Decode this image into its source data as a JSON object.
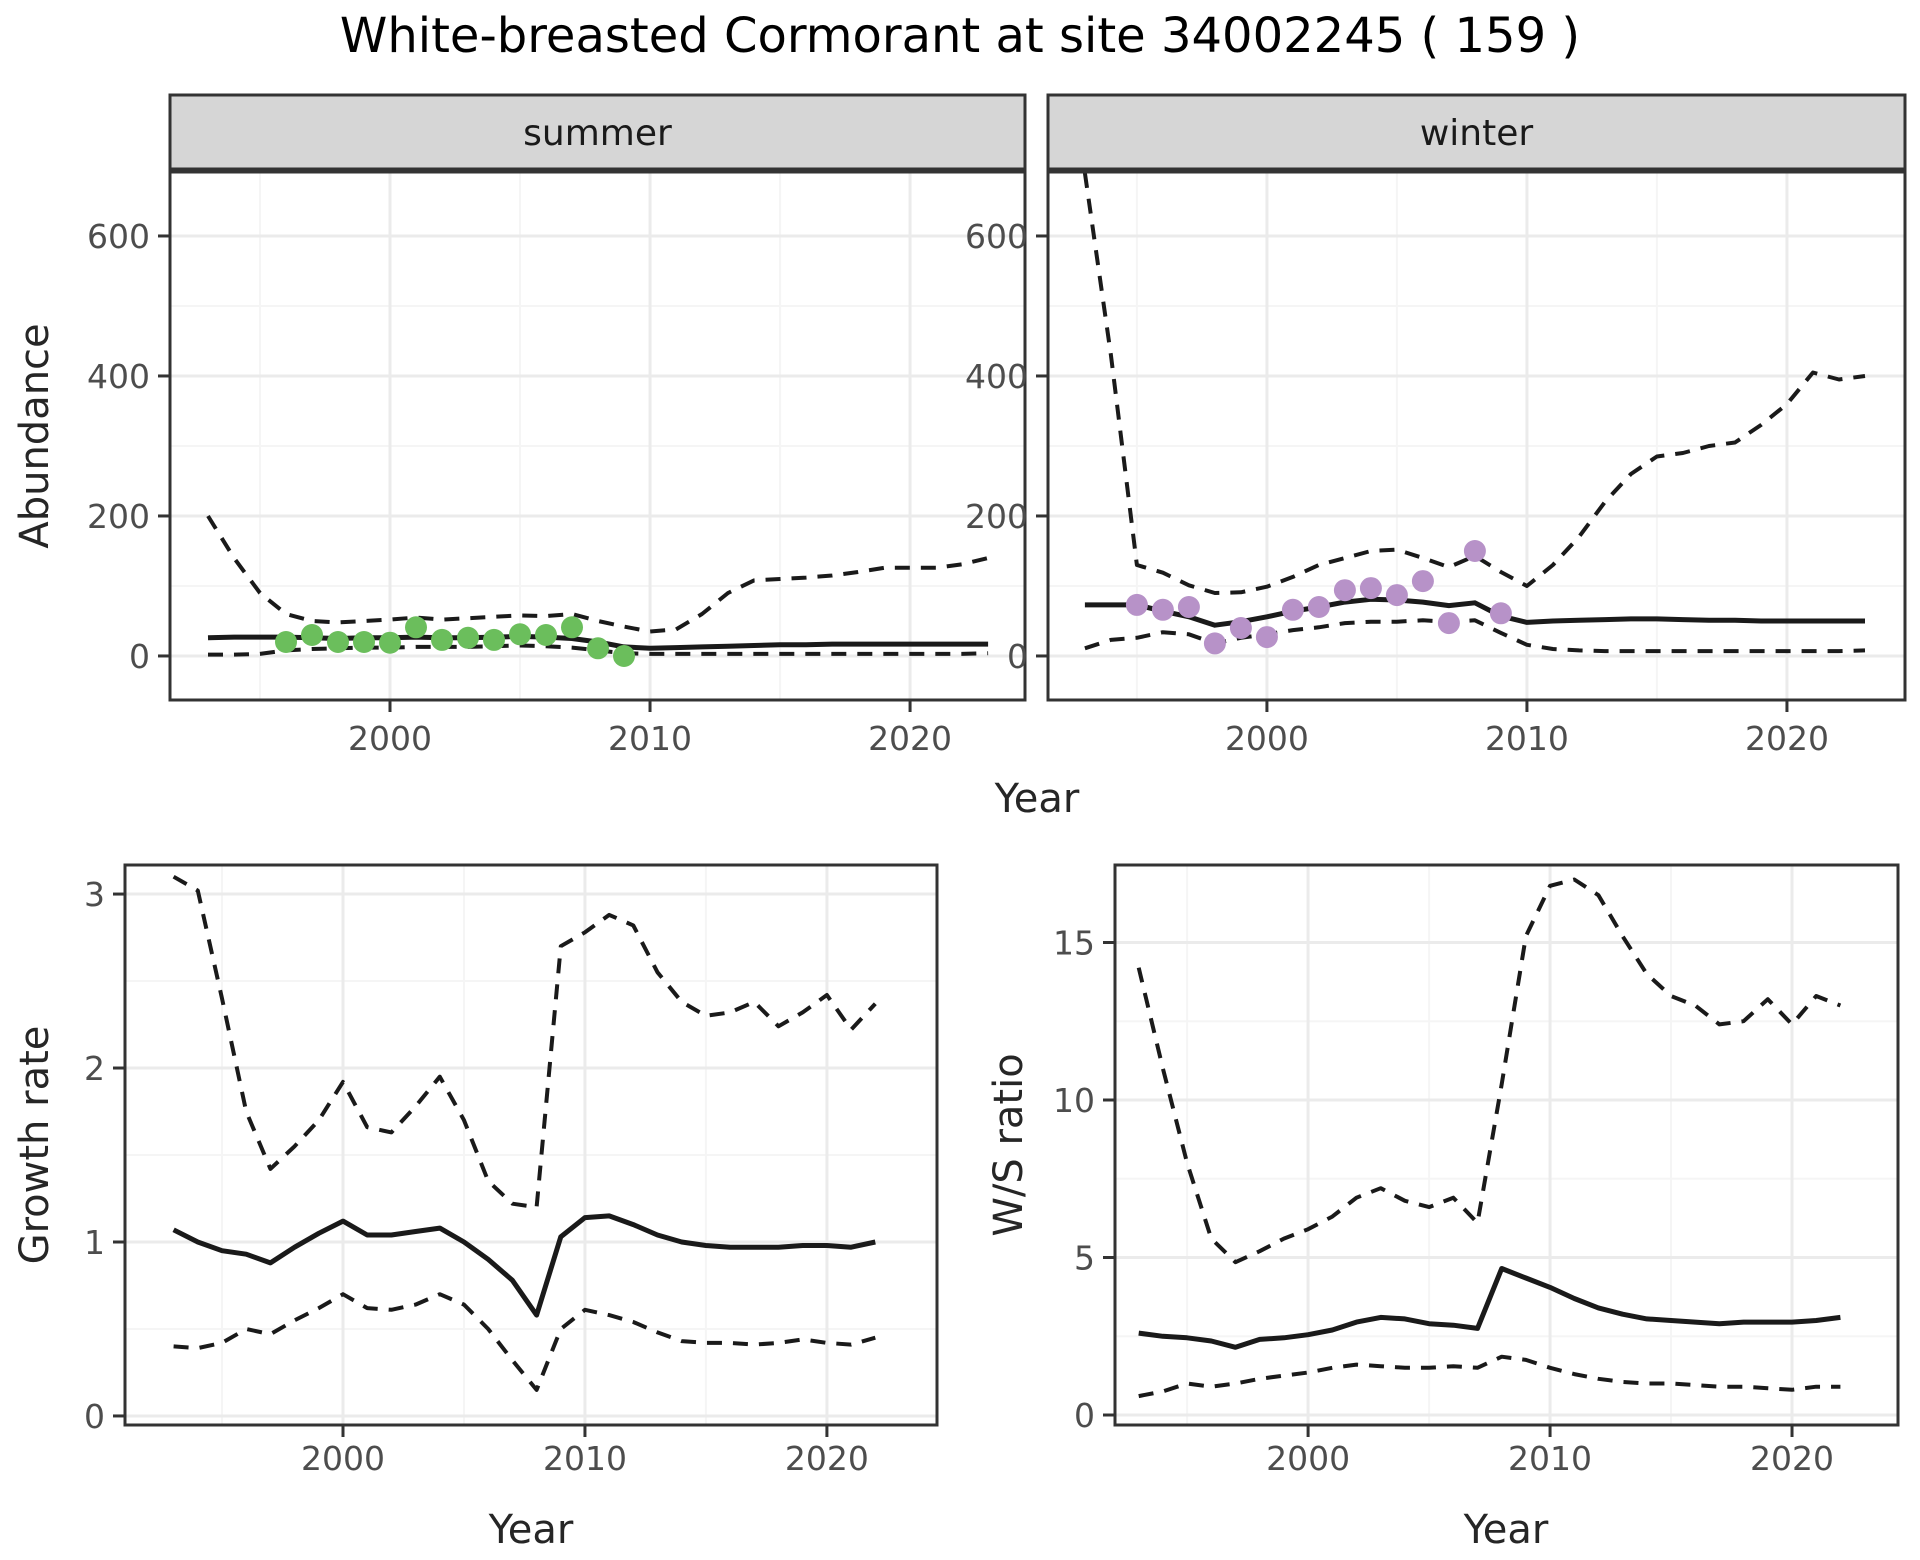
{
  "title": "White-breasted Cormorant at site 34002245 ( 159 )",
  "colors": {
    "background": "#ffffff",
    "line": "#1a1a1a",
    "grid_major": "#ebebeb",
    "grid_minor": "#f5f5f5",
    "panel_border": "#333333",
    "strip_background": "#d6d6d6",
    "tick_text": "#4d4d4d",
    "summer_points": "#6bbe5c",
    "winter_points": "#b792c8"
  },
  "chart_data": [
    {
      "id": "abundance-summer",
      "type": "line",
      "facet": "summer",
      "ylabel": "Abundance",
      "xlabel": "Year",
      "grid": true,
      "legend": "none",
      "xlim": [
        1991.54,
        2024.42
      ],
      "ylim": [
        -62.9,
        691.4
      ],
      "xticks": [
        2000,
        2010,
        2020
      ],
      "xminor": [
        1995,
        2005,
        2015
      ],
      "yticks": [
        0,
        200,
        400,
        600
      ],
      "yminor": [
        100,
        300,
        500
      ],
      "x": [
        1993,
        1994,
        1995,
        1996,
        1997,
        1998,
        1999,
        2000,
        2001,
        2002,
        2003,
        2004,
        2005,
        2006,
        2007,
        2008,
        2009,
        2010,
        2011,
        2012,
        2013,
        2014,
        2015,
        2016,
        2017,
        2018,
        2019,
        2020,
        2021,
        2022,
        2023
      ],
      "series": [
        {
          "name": "median",
          "style": "solid",
          "values": [
            26,
            27,
            27,
            27,
            26,
            25,
            26,
            26,
            27,
            26,
            26,
            27,
            28,
            27,
            25,
            20,
            13,
            11,
            12,
            13,
            14,
            15,
            16,
            16,
            17,
            17,
            17,
            17,
            17,
            17,
            17
          ]
        },
        {
          "name": "upper-ci",
          "style": "dashed",
          "values": [
            200,
            140,
            90,
            60,
            50,
            48,
            50,
            52,
            55,
            52,
            54,
            56,
            58,
            57,
            60,
            50,
            42,
            35,
            38,
            60,
            90,
            108,
            110,
            112,
            115,
            120,
            126,
            126,
            126,
            131,
            140
          ]
        },
        {
          "name": "lower-ci",
          "style": "dashed",
          "values": [
            2,
            2,
            3,
            8,
            10,
            11,
            12,
            12,
            13,
            13,
            13,
            14,
            15,
            14,
            12,
            8,
            4,
            3,
            3,
            3,
            3,
            3,
            3,
            3,
            3,
            3,
            3,
            3,
            3,
            3,
            4
          ]
        }
      ],
      "points": {
        "name": "observed-count",
        "color": "#6bbe5c",
        "x": [
          1996,
          1997,
          1998,
          1999,
          2000,
          2001,
          2002,
          2003,
          2004,
          2005,
          2006,
          2007,
          2008,
          2009
        ],
        "y": [
          20,
          30,
          20,
          20,
          19,
          41,
          23,
          26,
          23,
          31,
          30,
          41,
          11,
          0
        ]
      }
    },
    {
      "id": "abundance-winter",
      "type": "line",
      "facet": "winter",
      "ylabel": "Abundance",
      "xlabel": "Year",
      "grid": true,
      "legend": "none",
      "xlim": [
        1991.58,
        2024.54
      ],
      "ylim": [
        -62.9,
        691.4
      ],
      "xticks": [
        2000,
        2010,
        2020
      ],
      "xminor": [
        1995,
        2005,
        2015
      ],
      "yticks": [
        0,
        200,
        400,
        600
      ],
      "yminor": [
        100,
        300,
        500
      ],
      "x": [
        1993,
        1994,
        1995,
        1996,
        1997,
        1998,
        1999,
        2000,
        2001,
        2002,
        2003,
        2004,
        2005,
        2006,
        2007,
        2008,
        2009,
        2010,
        2011,
        2012,
        2013,
        2014,
        2015,
        2016,
        2017,
        2018,
        2019,
        2020,
        2021,
        2022,
        2023
      ],
      "series": [
        {
          "name": "median",
          "style": "solid",
          "values": [
            73,
            73,
            73,
            64,
            56,
            44,
            49,
            56,
            64,
            70,
            77,
            81,
            80,
            77,
            72,
            76,
            57,
            48,
            50,
            51,
            52,
            53,
            53,
            52,
            51,
            51,
            50,
            50,
            50,
            50,
            50
          ]
        },
        {
          "name": "upper-ci",
          "style": "dashed",
          "values": [
            690,
            430,
            130,
            119,
            101,
            90,
            91,
            99,
            113,
            130,
            140,
            150,
            152,
            140,
            127,
            143,
            120,
            100,
            130,
            170,
            220,
            260,
            285,
            290,
            300,
            305,
            330,
            360,
            405,
            395,
            400
          ]
        },
        {
          "name": "lower-ci",
          "style": "dashed",
          "values": [
            11,
            23,
            26,
            34,
            31,
            18,
            26,
            31,
            37,
            41,
            47,
            49,
            49,
            51,
            49,
            51,
            33,
            16,
            10,
            8,
            7,
            7,
            7,
            7,
            7,
            7,
            7,
            7,
            7,
            7,
            8
          ]
        }
      ],
      "points": {
        "name": "observed-count",
        "color": "#b792c8",
        "x": [
          1995,
          1996,
          1997,
          1998,
          1999,
          2000,
          2001,
          2002,
          2003,
          2004,
          2005,
          2006,
          2007,
          2008,
          2009
        ],
        "y": [
          73,
          66,
          70,
          18,
          40,
          27,
          66,
          70,
          94,
          97,
          87,
          107,
          47,
          150,
          61
        ]
      }
    },
    {
      "id": "growth-rate",
      "type": "line",
      "facet": null,
      "ylabel": "Growth rate",
      "xlabel": "Year",
      "grid": true,
      "legend": "none",
      "xlim": [
        1990.99,
        2024.55
      ],
      "ylim": [
        -0.052,
        3.167
      ],
      "xticks": [
        2000,
        2010,
        2020
      ],
      "xminor": [
        1995,
        2005,
        2015
      ],
      "yticks": [
        0,
        1,
        2,
        3
      ],
      "yminor": [
        0.5,
        1.5,
        2.5
      ],
      "x": [
        1993,
        1994,
        1995,
        1996,
        1997,
        1998,
        1999,
        2000,
        2001,
        2002,
        2003,
        2004,
        2005,
        2006,
        2007,
        2008,
        2009,
        2010,
        2011,
        2012,
        2013,
        2014,
        2015,
        2016,
        2017,
        2018,
        2019,
        2020,
        2021,
        2022
      ],
      "series": [
        {
          "name": "median",
          "style": "solid",
          "values": [
            1.07,
            1.0,
            0.95,
            0.93,
            0.88,
            0.97,
            1.05,
            1.12,
            1.04,
            1.04,
            1.06,
            1.08,
            1.0,
            0.9,
            0.78,
            0.58,
            1.03,
            1.14,
            1.15,
            1.1,
            1.04,
            1.0,
            0.98,
            0.97,
            0.97,
            0.97,
            0.98,
            0.98,
            0.97,
            1.0
          ]
        },
        {
          "name": "upper-ci",
          "style": "dashed",
          "values": [
            3.1,
            3.02,
            2.4,
            1.75,
            1.42,
            1.55,
            1.7,
            1.92,
            1.66,
            1.63,
            1.78,
            1.95,
            1.7,
            1.35,
            1.22,
            1.2,
            2.7,
            2.78,
            2.88,
            2.82,
            2.55,
            2.38,
            2.3,
            2.32,
            2.38,
            2.24,
            2.32,
            2.42,
            2.22,
            2.37
          ]
        },
        {
          "name": "lower-ci",
          "style": "dashed",
          "values": [
            0.4,
            0.39,
            0.42,
            0.5,
            0.47,
            0.55,
            0.62,
            0.7,
            0.62,
            0.61,
            0.64,
            0.7,
            0.64,
            0.5,
            0.32,
            0.15,
            0.5,
            0.61,
            0.58,
            0.54,
            0.48,
            0.43,
            0.42,
            0.42,
            0.41,
            0.42,
            0.44,
            0.42,
            0.41,
            0.45
          ]
        }
      ],
      "points": null
    },
    {
      "id": "ws-ratio",
      "type": "line",
      "facet": null,
      "ylabel": "W/S ratio",
      "xlabel": "Year",
      "grid": true,
      "legend": "none",
      "xlim": [
        1992.02,
        2024.38
      ],
      "ylim": [
        -0.317,
        17.46
      ],
      "xticks": [
        2000,
        2010,
        2020
      ],
      "xminor": [
        1995,
        2005,
        2015
      ],
      "yticks": [
        0,
        5,
        10,
        15
      ],
      "yminor": [
        2.5,
        7.5,
        12.5
      ],
      "x": [
        1993,
        1994,
        1995,
        1996,
        1997,
        1998,
        1999,
        2000,
        2001,
        2002,
        2003,
        2004,
        2005,
        2006,
        2007,
        2008,
        2009,
        2010,
        2011,
        2012,
        2013,
        2014,
        2015,
        2016,
        2017,
        2018,
        2019,
        2020,
        2021,
        2022
      ],
      "series": [
        {
          "name": "median",
          "style": "solid",
          "values": [
            2.6,
            2.5,
            2.45,
            2.35,
            2.15,
            2.4,
            2.45,
            2.55,
            2.7,
            2.95,
            3.1,
            3.05,
            2.9,
            2.85,
            2.75,
            4.65,
            4.35,
            4.05,
            3.7,
            3.4,
            3.2,
            3.05,
            3.0,
            2.95,
            2.9,
            2.95,
            2.95,
            2.95,
            3.0,
            3.1
          ]
        },
        {
          "name": "upper-ci",
          "style": "dashed",
          "values": [
            14.2,
            11.0,
            8.0,
            5.6,
            4.85,
            5.2,
            5.6,
            5.9,
            6.3,
            6.9,
            7.2,
            6.8,
            6.6,
            6.9,
            6.1,
            10.5,
            15.2,
            16.8,
            17.0,
            16.5,
            15.2,
            14.0,
            13.3,
            13.0,
            12.4,
            12.5,
            13.2,
            12.4,
            13.3,
            13.0
          ]
        },
        {
          "name": "lower-ci",
          "style": "dashed",
          "values": [
            0.6,
            0.75,
            1.0,
            0.9,
            1.0,
            1.15,
            1.25,
            1.35,
            1.5,
            1.6,
            1.55,
            1.5,
            1.5,
            1.55,
            1.5,
            1.85,
            1.75,
            1.5,
            1.3,
            1.15,
            1.05,
            1.0,
            1.0,
            0.95,
            0.9,
            0.9,
            0.85,
            0.8,
            0.9,
            0.9
          ]
        }
      ],
      "points": null
    }
  ]
}
